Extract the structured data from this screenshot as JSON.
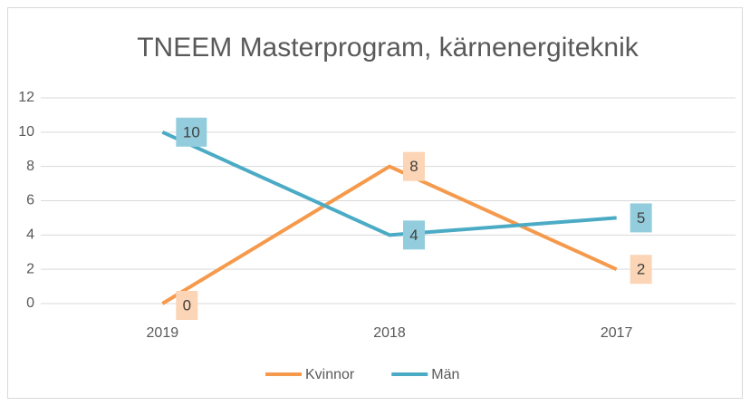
{
  "chart_data": {
    "type": "line",
    "title": "TNEEM Masterprogram, kärnenergiteknik",
    "categories": [
      "2019",
      "2018",
      "2017"
    ],
    "series": [
      {
        "name": "Kvinnor",
        "color": "#f59a4c",
        "label_color": "#fbd5b5",
        "values": [
          0,
          8,
          2
        ]
      },
      {
        "name": "Män",
        "color": "#4babc5",
        "label_color": "#93cddd",
        "values": [
          10,
          4,
          5
        ]
      }
    ],
    "ylim": [
      0,
      12
    ],
    "yticks": [
      0,
      2,
      4,
      6,
      8,
      10,
      12
    ],
    "grid": true,
    "legend": "bottom"
  }
}
